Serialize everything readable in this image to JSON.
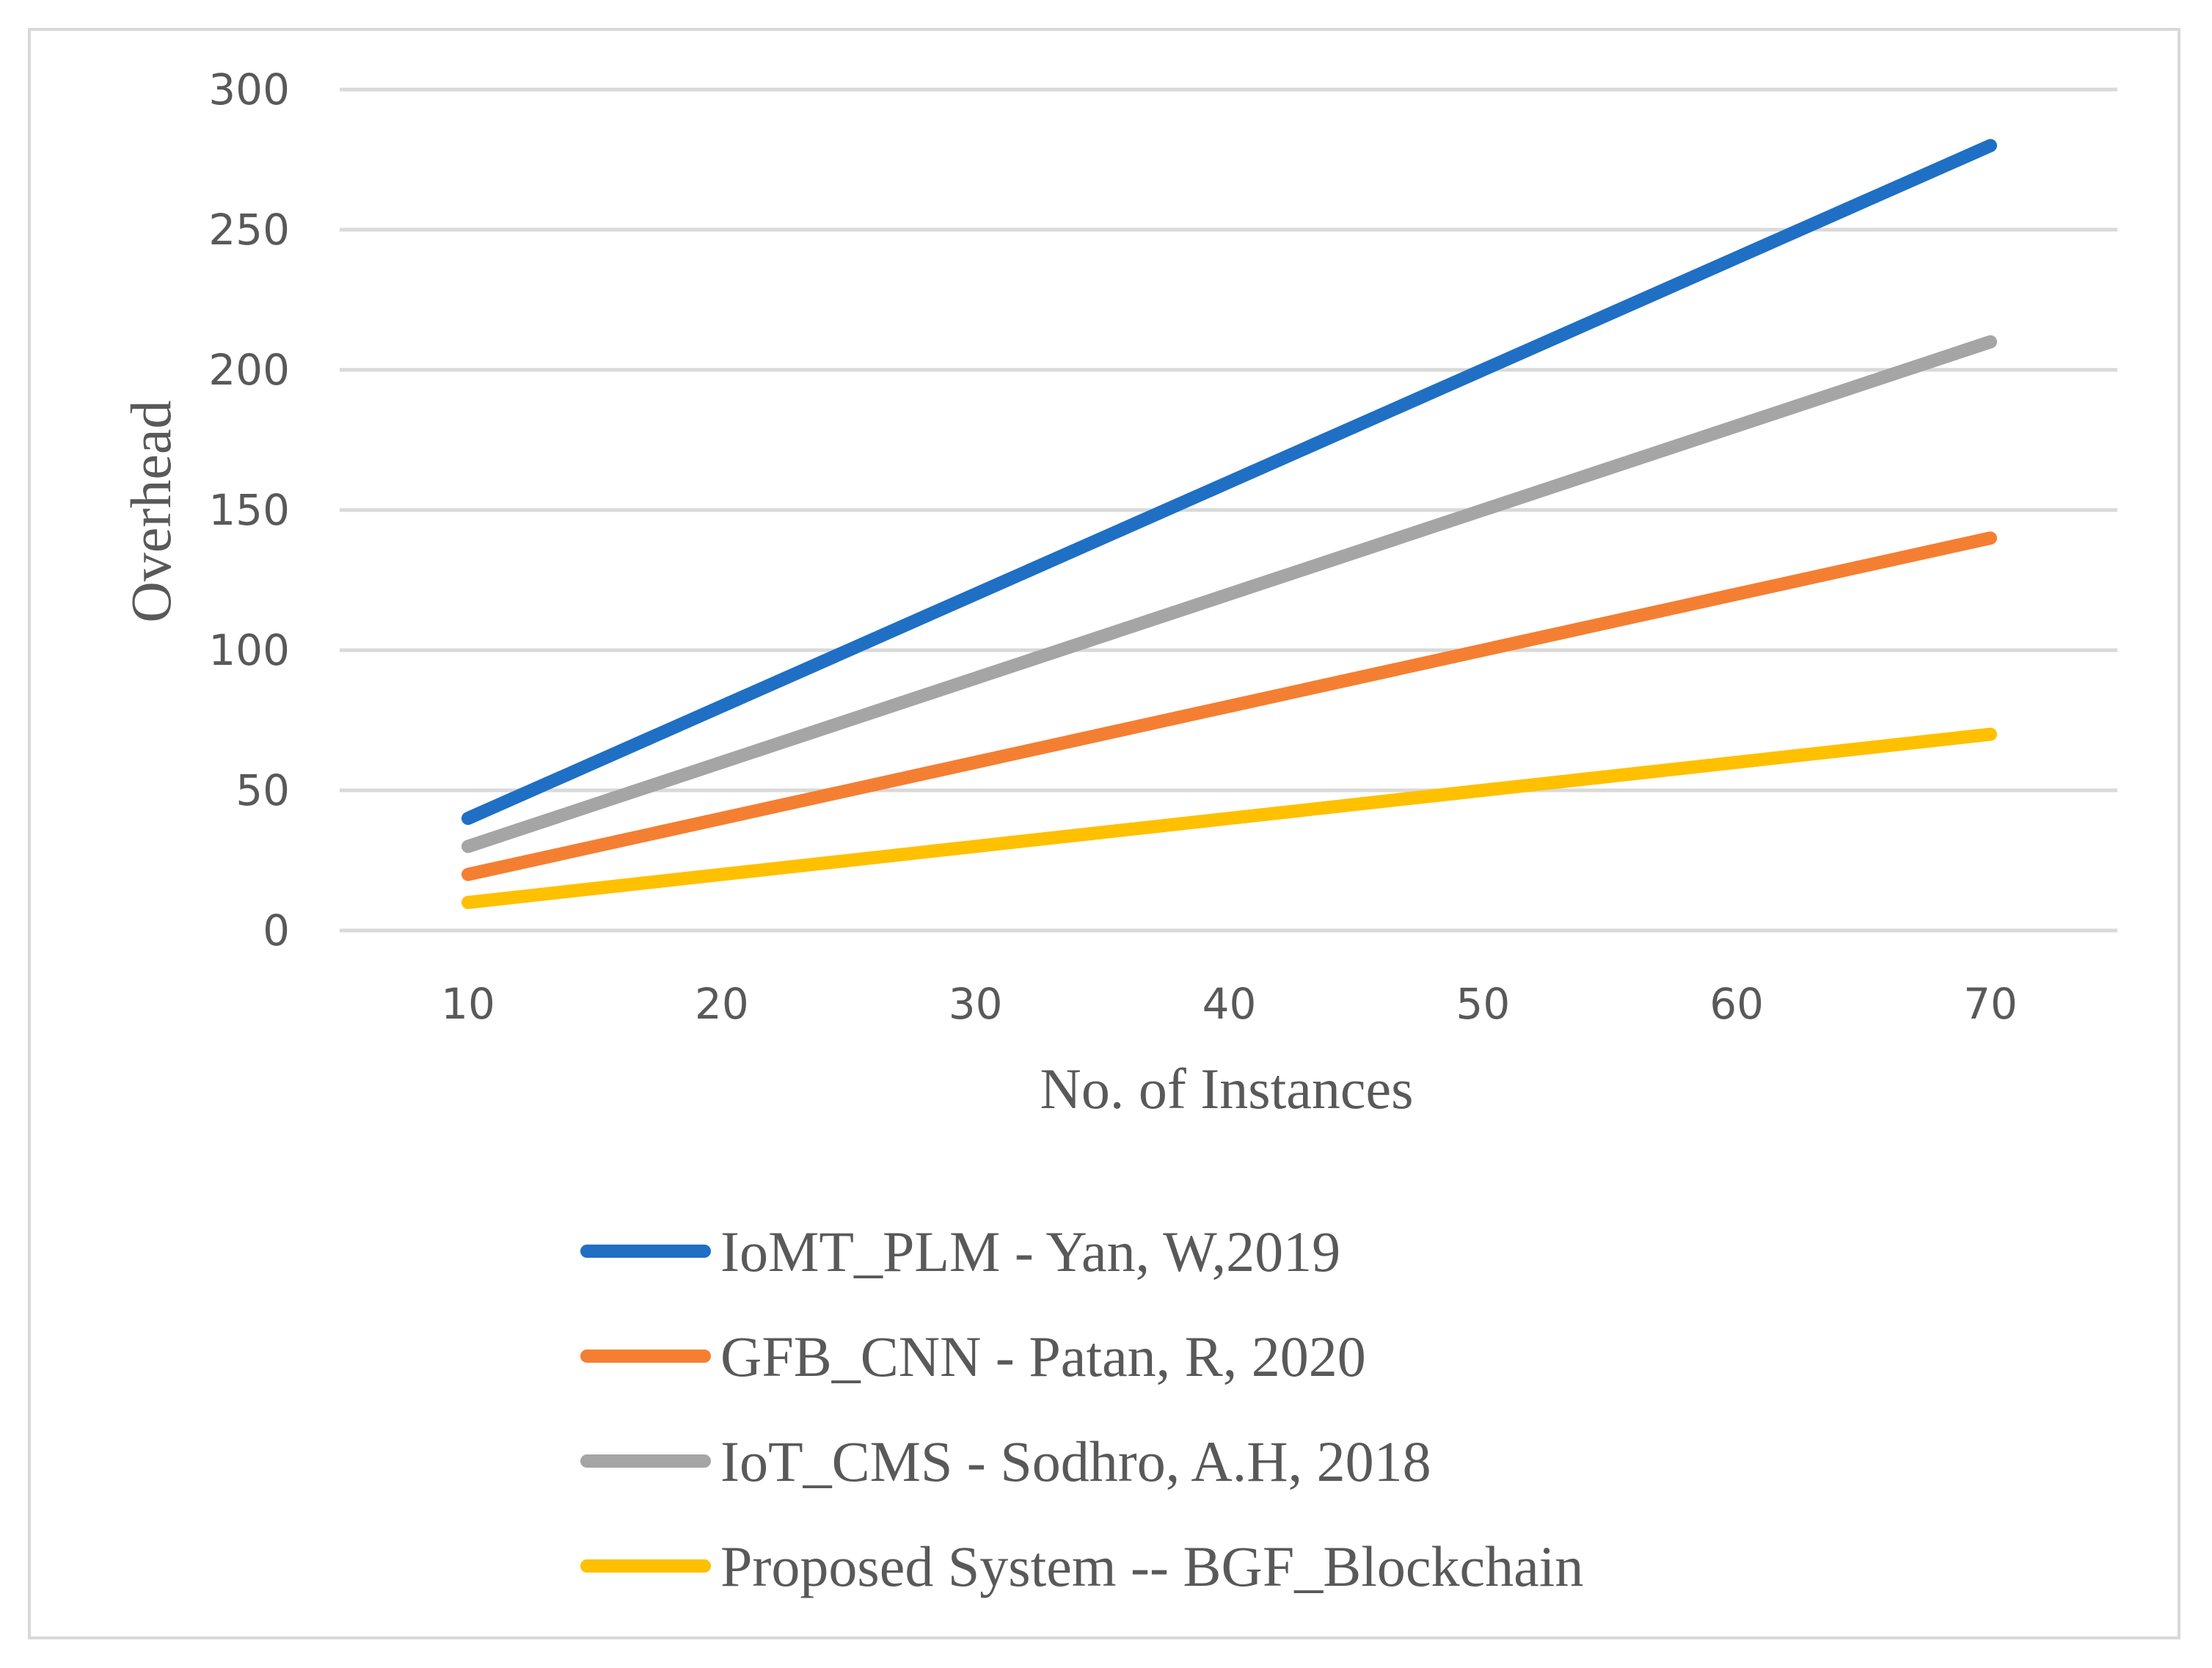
{
  "chart_data": {
    "type": "line",
    "xlabel": "No. of Instances",
    "ylabel": "Overhead",
    "x": [
      10,
      20,
      30,
      40,
      50,
      60,
      70
    ],
    "ylim": [
      0,
      300
    ],
    "yticks": [
      0,
      50,
      100,
      150,
      200,
      250,
      300
    ],
    "grid": true,
    "legend_position": "bottom",
    "series": [
      {
        "name": "IoMT_PLM - Yan, W,2019",
        "color": "#1f6fc5",
        "values": [
          40,
          80,
          120,
          160,
          200,
          240,
          280
        ]
      },
      {
        "name": "GFB_CNN - Patan, R, 2020",
        "color": "#f47f32",
        "values": [
          20,
          40,
          60,
          80,
          100,
          120,
          140
        ]
      },
      {
        "name": "IoT_CMS - Sodhro, A.H, 2018",
        "color": "#a5a5a5",
        "values": [
          30,
          60,
          90,
          120,
          150,
          180,
          210
        ]
      },
      {
        "name": "Proposed System -- BGF_Blockchain",
        "color": "#ffc000",
        "values": [
          10,
          20,
          30,
          40,
          50,
          60,
          70
        ]
      }
    ]
  }
}
